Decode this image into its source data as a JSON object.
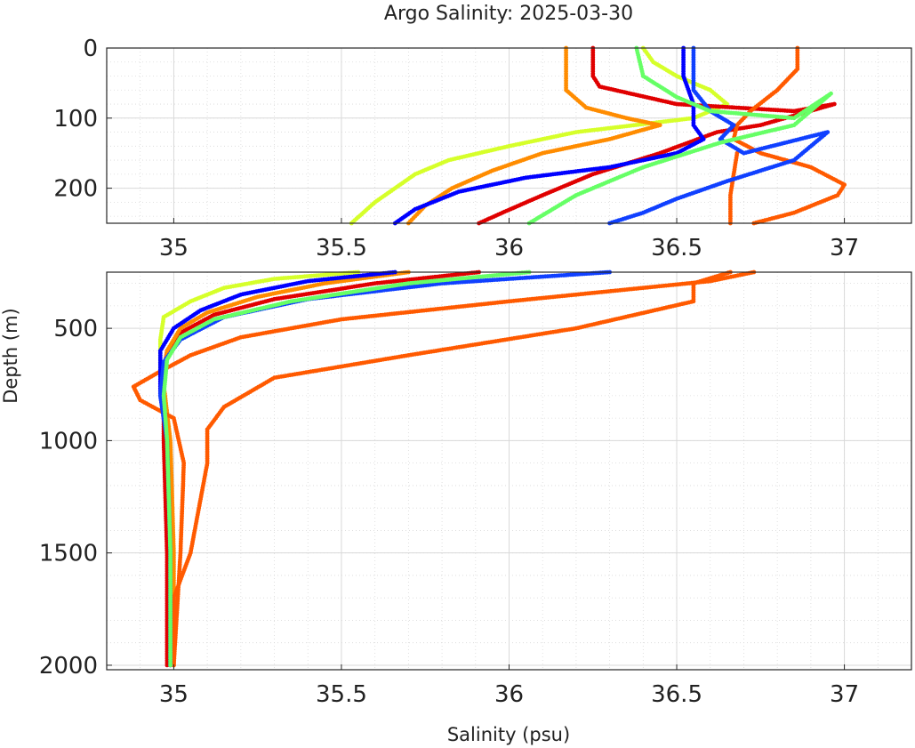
{
  "title": "Argo Salinity: 2025-03-30",
  "colors": {
    "yellow": "#d6ff2a",
    "red": "#e00000",
    "orange": "#ff8c00",
    "dark_orange": "#ff5a00",
    "blue": "#0000ff",
    "blue2": "#1040ff",
    "green": "#66ff66",
    "grid": "#d9d9d9",
    "axis": "#262626"
  },
  "chart_data": [
    {
      "type": "scatter",
      "panel": "upper",
      "xlim": [
        34.8,
        37.2
      ],
      "ylim": [
        250,
        0
      ],
      "x_ticks": [
        "35",
        "35.5",
        "36",
        "36.5",
        "37"
      ],
      "y_ticks": [
        "0",
        "100",
        "200"
      ],
      "grid": true,
      "series": [
        {
          "color": "yellow",
          "points": [
            [
              36.4,
              0
            ],
            [
              36.43,
              20
            ],
            [
              36.5,
              40
            ],
            [
              36.6,
              60
            ],
            [
              36.65,
              80
            ],
            [
              36.55,
              100
            ],
            [
              36.2,
              120
            ],
            [
              36.0,
              140
            ],
            [
              35.82,
              160
            ],
            [
              35.72,
              180
            ],
            [
              35.66,
              200
            ],
            [
              35.6,
              220
            ],
            [
              35.53,
              250
            ]
          ]
        },
        {
          "color": "red",
          "points": [
            [
              36.25,
              0
            ],
            [
              36.25,
              40
            ],
            [
              36.27,
              55
            ],
            [
              36.5,
              80
            ],
            [
              36.85,
              90
            ],
            [
              36.97,
              80
            ],
            [
              36.75,
              110
            ],
            [
              36.62,
              120
            ],
            [
              36.45,
              150
            ],
            [
              36.25,
              180
            ],
            [
              36.1,
              210
            ],
            [
              35.98,
              235
            ],
            [
              35.91,
              250
            ]
          ]
        },
        {
          "color": "orange",
          "points": [
            [
              36.17,
              0
            ],
            [
              36.17,
              60
            ],
            [
              36.23,
              85
            ],
            [
              36.35,
              100
            ],
            [
              36.45,
              110
            ],
            [
              36.3,
              130
            ],
            [
              36.1,
              150
            ],
            [
              35.95,
              175
            ],
            [
              35.83,
              200
            ],
            [
              35.75,
              225
            ],
            [
              35.7,
              250
            ]
          ]
        },
        {
          "color": "dark_orange",
          "points": [
            [
              36.86,
              0
            ],
            [
              36.86,
              30
            ],
            [
              36.8,
              60
            ],
            [
              36.72,
              90
            ],
            [
              36.68,
              110
            ],
            [
              36.67,
              130
            ],
            [
              36.75,
              150
            ],
            [
              36.9,
              170
            ],
            [
              37.0,
              195
            ],
            [
              36.98,
              210
            ],
            [
              36.85,
              235
            ],
            [
              36.73,
              250
            ]
          ]
        },
        {
          "color": "dark_orange",
          "points": [
            [
              36.68,
              150
            ],
            [
              36.67,
              180
            ],
            [
              36.66,
              210
            ],
            [
              36.66,
              250
            ]
          ]
        },
        {
          "color": "blue",
          "points": [
            [
              36.52,
              0
            ],
            [
              36.52,
              40
            ],
            [
              36.55,
              80
            ],
            [
              36.55,
              110
            ],
            [
              36.58,
              130
            ],
            [
              36.5,
              150
            ],
            [
              36.3,
              170
            ],
            [
              36.05,
              185
            ],
            [
              35.85,
              205
            ],
            [
              35.72,
              230
            ],
            [
              35.66,
              250
            ]
          ]
        },
        {
          "color": "blue2",
          "points": [
            [
              36.55,
              0
            ],
            [
              36.55,
              60
            ],
            [
              36.6,
              90
            ],
            [
              36.67,
              110
            ],
            [
              36.63,
              130
            ],
            [
              36.7,
              150
            ],
            [
              36.95,
              120
            ],
            [
              36.85,
              160
            ],
            [
              36.65,
              190
            ],
            [
              36.5,
              215
            ],
            [
              36.4,
              235
            ],
            [
              36.3,
              250
            ]
          ]
        },
        {
          "color": "green",
          "points": [
            [
              36.38,
              0
            ],
            [
              36.4,
              40
            ],
            [
              36.5,
              70
            ],
            [
              36.6,
              90
            ],
            [
              36.85,
              100
            ],
            [
              36.96,
              65
            ],
            [
              36.85,
              110
            ],
            [
              36.63,
              135
            ],
            [
              36.4,
              170
            ],
            [
              36.2,
              210
            ],
            [
              36.06,
              250
            ]
          ]
        }
      ]
    },
    {
      "type": "scatter",
      "panel": "lower",
      "xlim": [
        34.8,
        37.2
      ],
      "ylim": [
        2020,
        250
      ],
      "x_ticks": [
        "35",
        "35.5",
        "36",
        "36.5",
        "37"
      ],
      "y_ticks": [
        "500",
        "1000",
        "1500",
        "2000"
      ],
      "xlabel": "Salinity (psu)",
      "ylabel": "Depth (m)",
      "grid": true,
      "series": [
        {
          "color": "yellow",
          "points": [
            [
              35.55,
              250
            ],
            [
              35.3,
              280
            ],
            [
              35.15,
              320
            ],
            [
              35.05,
              380
            ],
            [
              34.97,
              450
            ],
            [
              34.96,
              550
            ],
            [
              34.96,
              700
            ],
            [
              34.98,
              1000
            ],
            [
              34.99,
              1500
            ],
            [
              35.0,
              2000
            ]
          ]
        },
        {
          "color": "red",
          "points": [
            [
              35.91,
              250
            ],
            [
              35.6,
              300
            ],
            [
              35.3,
              370
            ],
            [
              35.12,
              440
            ],
            [
              35.02,
              520
            ],
            [
              34.98,
              600
            ],
            [
              34.97,
              700
            ],
            [
              34.97,
              1000
            ],
            [
              34.98,
              1500
            ],
            [
              34.98,
              2000
            ]
          ]
        },
        {
          "color": "orange",
          "points": [
            [
              35.7,
              250
            ],
            [
              35.45,
              300
            ],
            [
              35.25,
              360
            ],
            [
              35.1,
              430
            ],
            [
              35.02,
              500
            ],
            [
              34.98,
              600
            ],
            [
              34.97,
              750
            ],
            [
              34.99,
              1000
            ],
            [
              35.0,
              1500
            ],
            [
              35.0,
              2000
            ]
          ]
        },
        {
          "color": "dark_orange",
          "points": [
            [
              36.73,
              250
            ],
            [
              36.6,
              290
            ],
            [
              36.0,
              380
            ],
            [
              35.5,
              460
            ],
            [
              35.2,
              540
            ],
            [
              35.05,
              620
            ],
            [
              34.95,
              700
            ],
            [
              34.88,
              760
            ],
            [
              34.9,
              820
            ],
            [
              35.0,
              900
            ],
            [
              35.03,
              1100
            ],
            [
              35.02,
              1500
            ],
            [
              35.0,
              2000
            ]
          ]
        },
        {
          "color": "dark_orange",
          "points": [
            [
              36.66,
              250
            ],
            [
              36.55,
              300
            ],
            [
              36.55,
              380
            ],
            [
              36.2,
              500
            ],
            [
              35.7,
              620
            ],
            [
              35.3,
              720
            ],
            [
              35.15,
              850
            ],
            [
              35.1,
              950
            ],
            [
              35.1,
              1100
            ],
            [
              35.05,
              1500
            ],
            [
              35.0,
              1700
            ],
            [
              35.0,
              2000
            ]
          ]
        },
        {
          "color": "blue",
          "points": [
            [
              35.66,
              250
            ],
            [
              35.4,
              290
            ],
            [
              35.2,
              350
            ],
            [
              35.08,
              420
            ],
            [
              35.0,
              500
            ],
            [
              34.96,
              600
            ],
            [
              34.96,
              800
            ],
            [
              34.98,
              1000
            ],
            [
              34.99,
              1500
            ],
            [
              34.99,
              2000
            ]
          ]
        },
        {
          "color": "blue2",
          "points": [
            [
              36.3,
              250
            ],
            [
              35.8,
              300
            ],
            [
              35.4,
              370
            ],
            [
              35.15,
              450
            ],
            [
              35.02,
              550
            ],
            [
              34.97,
              650
            ],
            [
              34.96,
              800
            ],
            [
              34.98,
              1000
            ],
            [
              34.99,
              1500
            ],
            [
              34.99,
              2000
            ]
          ]
        },
        {
          "color": "green",
          "points": [
            [
              36.06,
              250
            ],
            [
              35.7,
              300
            ],
            [
              35.35,
              380
            ],
            [
              35.12,
              460
            ],
            [
              35.02,
              540
            ],
            [
              34.98,
              640
            ],
            [
              34.97,
              800
            ],
            [
              34.98,
              1000
            ],
            [
              34.99,
              1500
            ],
            [
              34.99,
              2000
            ]
          ]
        }
      ]
    }
  ]
}
